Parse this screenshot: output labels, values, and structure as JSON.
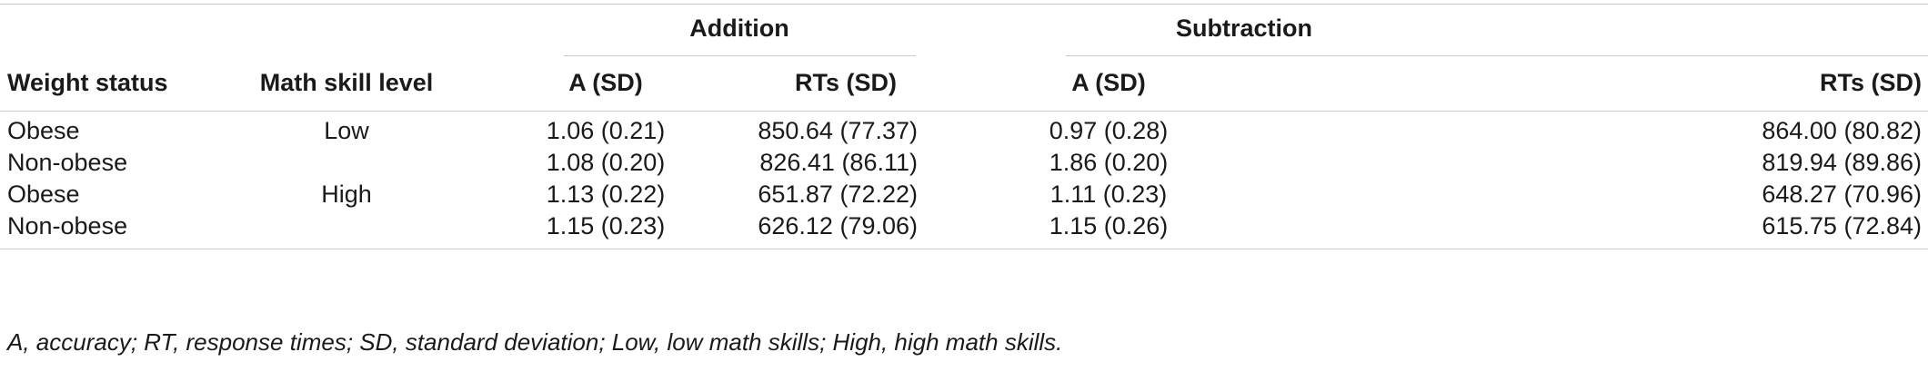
{
  "table": {
    "group_headers": [
      "Addition",
      "Subtraction"
    ],
    "column_headers": [
      "Weight status",
      "Math skill level",
      "A (SD)",
      "RTs (SD)",
      "A (SD)",
      "RTs (SD)"
    ],
    "rows": [
      [
        "Obese",
        "Low",
        "1.06 (0.21)",
        "850.64 (77.37)",
        "0.97 (0.28)",
        "864.00 (80.82)"
      ],
      [
        "Non-obese",
        "",
        "1.08 (0.20)",
        "826.41 (86.11)",
        "1.86 (0.20)",
        "819.94 (89.86)"
      ],
      [
        "Obese",
        "High",
        "1.13 (0.22)",
        "651.87 (72.22)",
        "1.11 (0.23)",
        "648.27 (70.96)"
      ],
      [
        "Non-obese",
        "",
        "1.15 (0.23)",
        "626.12 (79.06)",
        "1.15 (0.26)",
        "615.75 (72.84)"
      ]
    ],
    "footnote": "A, accuracy; RT, response times; SD, standard deviation; Low, low math skills; High, high math skills."
  }
}
